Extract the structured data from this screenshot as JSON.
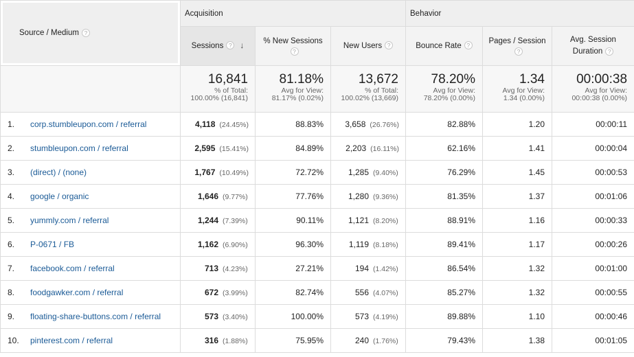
{
  "groups": {
    "acquisition": "Acquisition",
    "behavior": "Behavior"
  },
  "headers": {
    "source_medium": "Source / Medium",
    "sessions": "Sessions",
    "pct_new_sessions": "% New Sessions",
    "new_users": "New Users",
    "bounce_rate": "Bounce Rate",
    "pages_session": "Pages / Session",
    "avg_duration_line1": "Avg. Session",
    "avg_duration_line2": "Duration",
    "help_glyph": "?",
    "sort_glyph": "↓"
  },
  "totals": {
    "sessions": {
      "value": "16,841",
      "l1": "% of Total:",
      "l2": "100.00% (16,841)"
    },
    "pct_new": {
      "value": "81.18%",
      "l1": "Avg for View:",
      "l2": "81.17% (0.02%)"
    },
    "new_users": {
      "value": "13,672",
      "l1": "% of Total:",
      "l2": "100.02% (13,669)"
    },
    "bounce": {
      "value": "78.20%",
      "l1": "Avg for View:",
      "l2": "78.20% (0.00%)"
    },
    "pages": {
      "value": "1.34",
      "l1": "Avg for View:",
      "l2": "1.34 (0.00%)"
    },
    "duration": {
      "value": "00:00:38",
      "l1": "Avg for View:",
      "l2": "00:00:38 (0.00%)"
    }
  },
  "rows": [
    {
      "idx": "1.",
      "source": "corp.stumbleupon.com / referral",
      "sessions": "4,118",
      "sessions_pct": "(24.45%)",
      "pct_new": "88.83%",
      "new_users": "3,658",
      "new_users_pct": "(26.76%)",
      "bounce": "82.88%",
      "pages": "1.20",
      "duration": "00:00:11"
    },
    {
      "idx": "2.",
      "source": "stumbleupon.com / referral",
      "sessions": "2,595",
      "sessions_pct": "(15.41%)",
      "pct_new": "84.89%",
      "new_users": "2,203",
      "new_users_pct": "(16.11%)",
      "bounce": "62.16%",
      "pages": "1.41",
      "duration": "00:00:04"
    },
    {
      "idx": "3.",
      "source": "(direct) / (none)",
      "sessions": "1,767",
      "sessions_pct": "(10.49%)",
      "pct_new": "72.72%",
      "new_users": "1,285",
      "new_users_pct": "(9.40%)",
      "bounce": "76.29%",
      "pages": "1.45",
      "duration": "00:00:53"
    },
    {
      "idx": "4.",
      "source": "google / organic",
      "sessions": "1,646",
      "sessions_pct": "(9.77%)",
      "pct_new": "77.76%",
      "new_users": "1,280",
      "new_users_pct": "(9.36%)",
      "bounce": "81.35%",
      "pages": "1.37",
      "duration": "00:01:06"
    },
    {
      "idx": "5.",
      "source": "yummly.com / referral",
      "sessions": "1,244",
      "sessions_pct": "(7.39%)",
      "pct_new": "90.11%",
      "new_users": "1,121",
      "new_users_pct": "(8.20%)",
      "bounce": "88.91%",
      "pages": "1.16",
      "duration": "00:00:33"
    },
    {
      "idx": "6.",
      "source": "P-0671 / FB",
      "sessions": "1,162",
      "sessions_pct": "(6.90%)",
      "pct_new": "96.30%",
      "new_users": "1,119",
      "new_users_pct": "(8.18%)",
      "bounce": "89.41%",
      "pages": "1.17",
      "duration": "00:00:26"
    },
    {
      "idx": "7.",
      "source": "facebook.com / referral",
      "sessions": "713",
      "sessions_pct": "(4.23%)",
      "pct_new": "27.21%",
      "new_users": "194",
      "new_users_pct": "(1.42%)",
      "bounce": "86.54%",
      "pages": "1.32",
      "duration": "00:01:00"
    },
    {
      "idx": "8.",
      "source": "foodgawker.com / referral",
      "sessions": "672",
      "sessions_pct": "(3.99%)",
      "pct_new": "82.74%",
      "new_users": "556",
      "new_users_pct": "(4.07%)",
      "bounce": "85.27%",
      "pages": "1.32",
      "duration": "00:00:55"
    },
    {
      "idx": "9.",
      "source": "floating-share-buttons.com / referral",
      "sessions": "573",
      "sessions_pct": "(3.40%)",
      "pct_new": "100.00%",
      "new_users": "573",
      "new_users_pct": "(4.19%)",
      "bounce": "89.88%",
      "pages": "1.10",
      "duration": "00:00:46"
    },
    {
      "idx": "10.",
      "source": "pinterest.com / referral",
      "sessions": "316",
      "sessions_pct": "(1.88%)",
      "pct_new": "75.95%",
      "new_users": "240",
      "new_users_pct": "(1.76%)",
      "bounce": "79.43%",
      "pages": "1.38",
      "duration": "00:01:05"
    }
  ]
}
